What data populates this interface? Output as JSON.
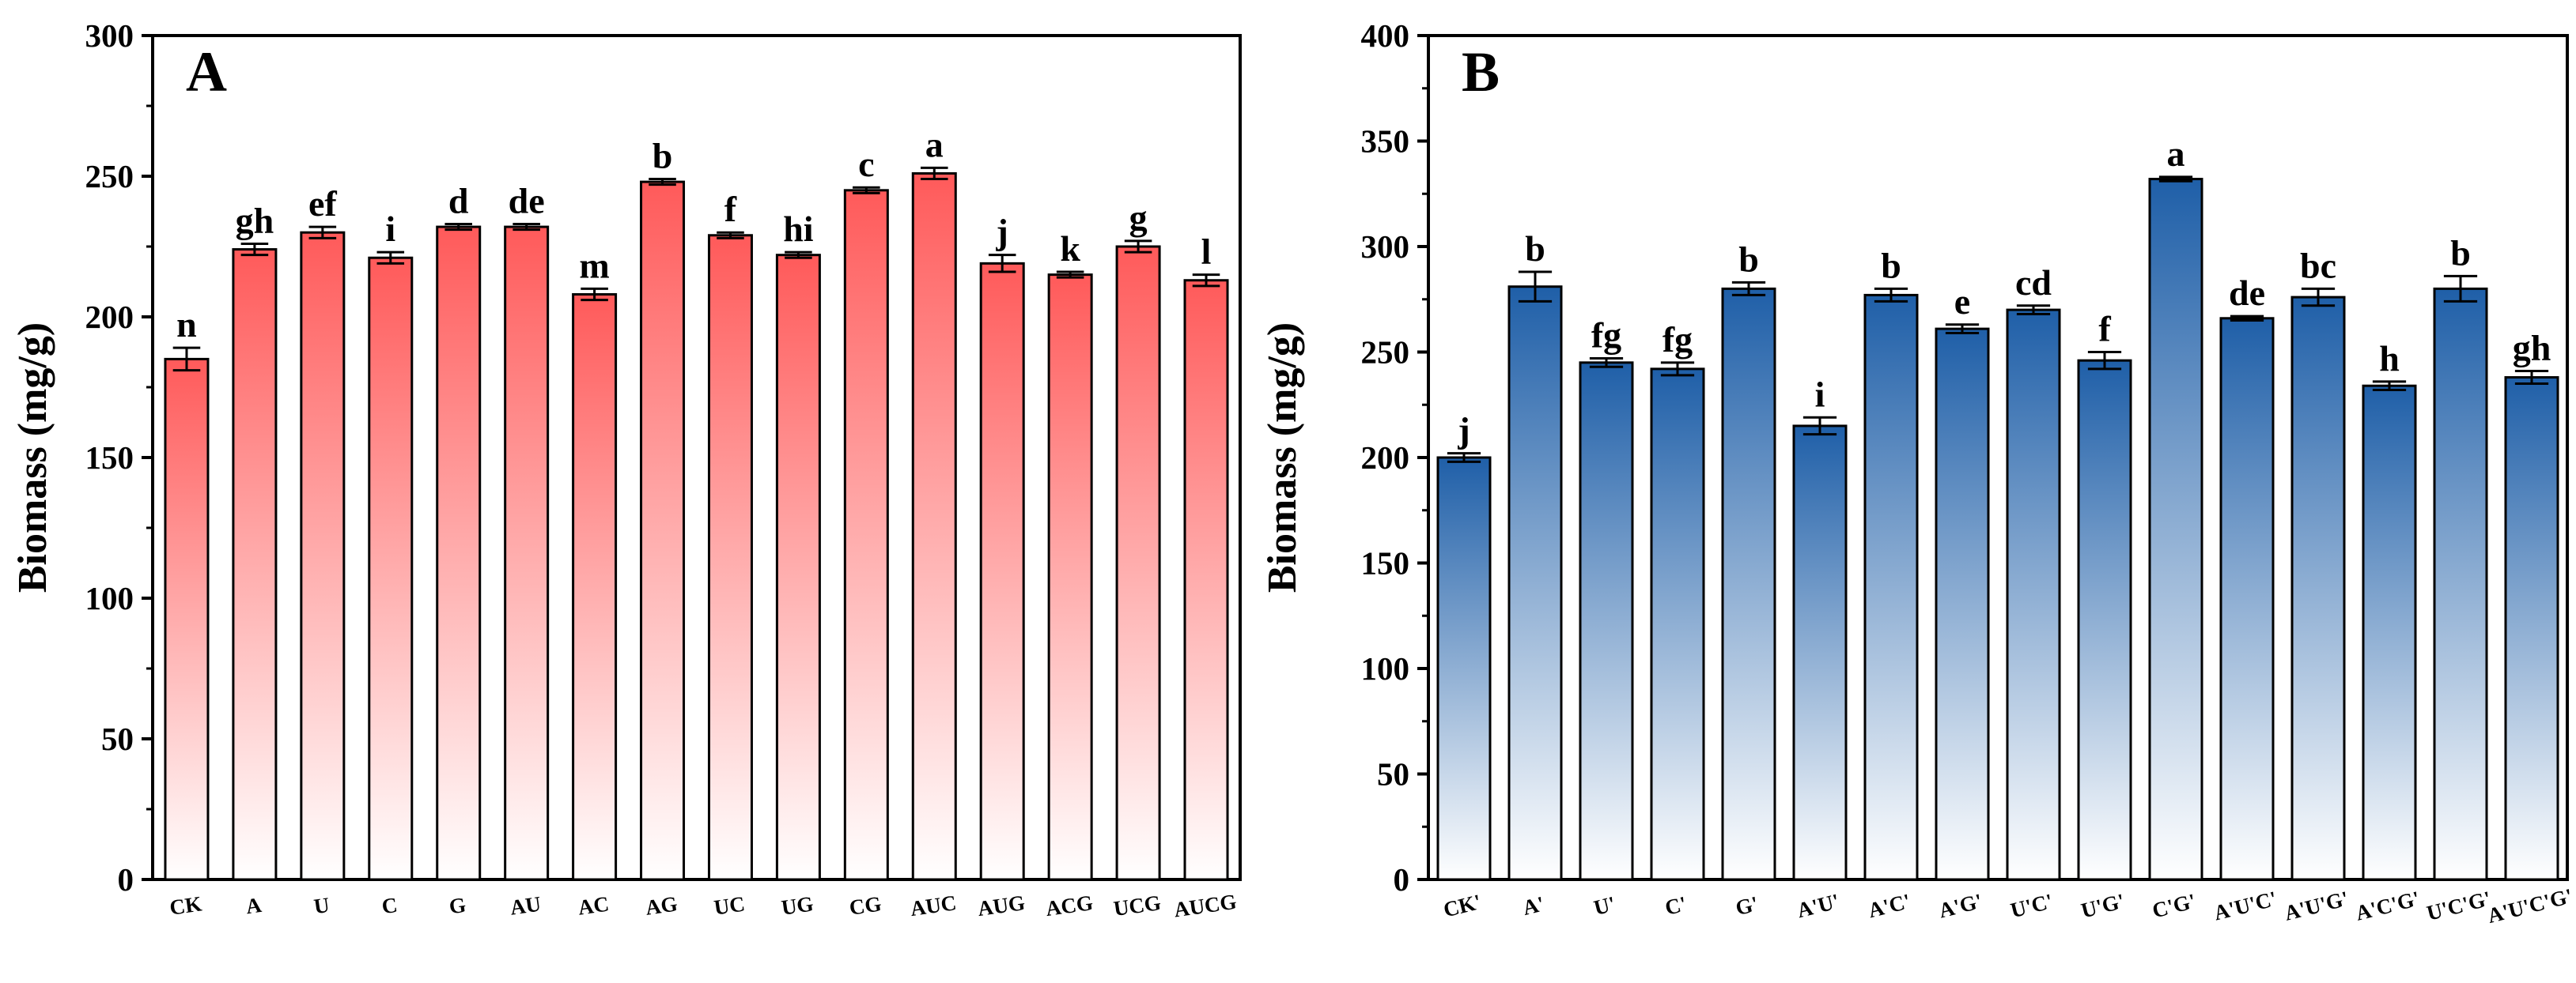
{
  "chart_data": [
    {
      "panel_label": "A",
      "type": "bar",
      "ylabel": "Biomass (mg/g)",
      "xlabel": "",
      "ylim": [
        0,
        300
      ],
      "yticks": [
        0,
        50,
        100,
        150,
        200,
        250,
        300
      ],
      "grid": false,
      "bar_color": "#ff5a5a",
      "categories": [
        "CK",
        "A",
        "U",
        "C",
        "G",
        "AU",
        "AC",
        "AG",
        "UC",
        "UG",
        "CG",
        "AUC",
        "AUG",
        "ACG",
        "UCG",
        "AUCG"
      ],
      "values": [
        185,
        224,
        230,
        221,
        232,
        232,
        208,
        248,
        229,
        222,
        245,
        251,
        219,
        215,
        225,
        213
      ],
      "errors": [
        4,
        2,
        2,
        2,
        1,
        1,
        2,
        1,
        1,
        1,
        1,
        2,
        3,
        1,
        2,
        2
      ],
      "significance": [
        "n",
        "gh",
        "ef",
        "i",
        "d",
        "de",
        "m",
        "b",
        "f",
        "hi",
        "c",
        "a",
        "j",
        "k",
        "g",
        "l"
      ]
    },
    {
      "panel_label": "B",
      "type": "bar",
      "ylabel": "Biomass (mg/g)",
      "xlabel": "",
      "ylim": [
        0,
        400
      ],
      "yticks": [
        0,
        50,
        100,
        150,
        200,
        250,
        300,
        350,
        400
      ],
      "grid": false,
      "bar_color": "#1f5fa8",
      "categories": [
        "CK'",
        "A'",
        "U'",
        "C'",
        "G'",
        "A'U'",
        "A'C'",
        "A'G'",
        "U'C'",
        "U'G'",
        "C'G'",
        "A'U'C'",
        "A'U'G'",
        "A'C'G'",
        "U'C'G'",
        "A'U'C'G'"
      ],
      "values": [
        200,
        281,
        245,
        242,
        280,
        215,
        277,
        261,
        270,
        246,
        332,
        266,
        276,
        234,
        280,
        238
      ],
      "errors": [
        2,
        7,
        2,
        3,
        3,
        4,
        3,
        2,
        2,
        4,
        1,
        1,
        4,
        2,
        6,
        3
      ],
      "significance": [
        "j",
        "b",
        "fg",
        "fg",
        "b",
        "i",
        "b",
        "e",
        "cd",
        "f",
        "a",
        "de",
        "bc",
        "h",
        "b",
        "gh"
      ]
    }
  ]
}
